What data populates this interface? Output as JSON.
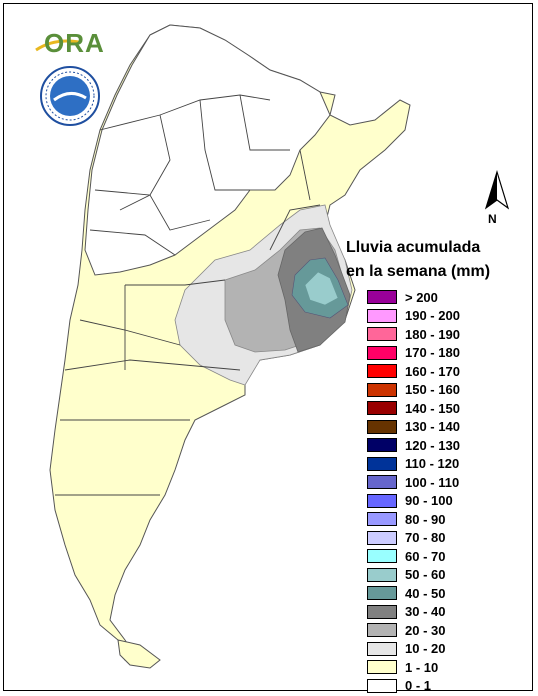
{
  "legend": {
    "title_line1": "Lluvia acumulada",
    "title_line2": "en la semana (mm)",
    "classes": [
      {
        "label": "> 200",
        "color": "#990099"
      },
      {
        "label": "190 - 200",
        "color": "#ff99ff"
      },
      {
        "label": "180 - 190",
        "color": "#ff6699"
      },
      {
        "label": "170 - 180",
        "color": "#ff0066"
      },
      {
        "label": "160 - 170",
        "color": "#ff0000"
      },
      {
        "label": "150 - 160",
        "color": "#cc3300"
      },
      {
        "label": "140 - 150",
        "color": "#990000"
      },
      {
        "label": "130 - 140",
        "color": "#663300"
      },
      {
        "label": "120 - 130",
        "color": "#000066"
      },
      {
        "label": "110 - 120",
        "color": "#003399"
      },
      {
        "label": "100 - 110",
        "color": "#6666cc"
      },
      {
        "label": "90 - 100",
        "color": "#6666ff"
      },
      {
        "label": "80 - 90",
        "color": "#9999ff"
      },
      {
        "label": "70 - 80",
        "color": "#ccccff"
      },
      {
        "label": "60 - 70",
        "color": "#99ffff"
      },
      {
        "label": "50 - 60",
        "color": "#99cccc"
      },
      {
        "label": "40 - 50",
        "color": "#669999"
      },
      {
        "label": "30 - 40",
        "color": "#808080"
      },
      {
        "label": "20 - 30",
        "color": "#b3b3b3"
      },
      {
        "label": "10 - 20",
        "color": "#e6e6e6"
      },
      {
        "label": "1 - 10",
        "color": "#ffffcc"
      },
      {
        "label": "0 - 1",
        "color": "#ffffff"
      }
    ]
  },
  "logos": {
    "ora_text": "ORA",
    "seal_icon": "smn-seal-icon"
  },
  "north_arrow": {
    "label": "N"
  }
}
